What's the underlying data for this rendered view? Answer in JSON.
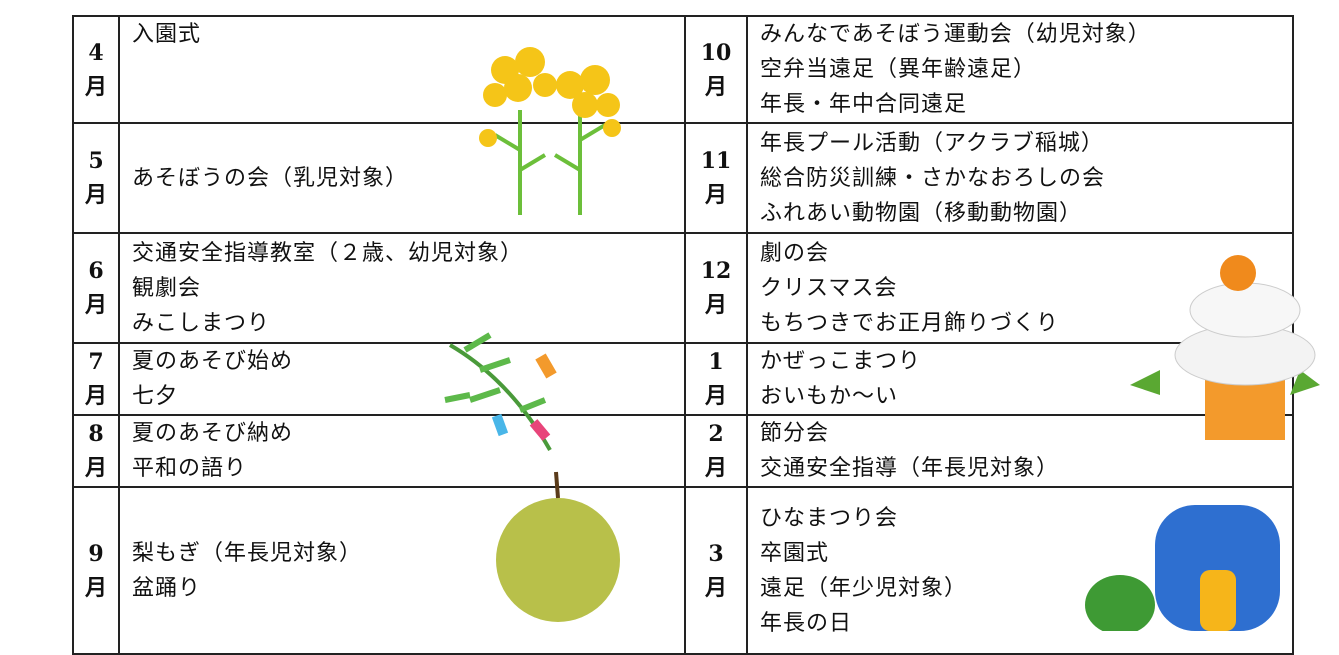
{
  "schedule": {
    "left": [
      {
        "month": [
          "4",
          "月"
        ],
        "events": [
          "入園式"
        ]
      },
      {
        "month": [
          "5",
          "月"
        ],
        "events": [
          "あそぼうの会（乳児対象）"
        ]
      },
      {
        "month": [
          "6",
          "月"
        ],
        "events": [
          "交通安全指導教室（２歳、幼児対象）",
          "観劇会",
          "みこしまつり"
        ]
      },
      {
        "month": [
          "7",
          "月"
        ],
        "events": [
          "夏のあそび始め",
          "七夕"
        ]
      },
      {
        "month": [
          "8",
          "月"
        ],
        "events": [
          "夏のあそび納め",
          "平和の語り"
        ]
      },
      {
        "month": [
          "9",
          "月"
        ],
        "events": [
          "梨もぎ（年長児対象）",
          "盆踊り"
        ]
      }
    ],
    "right": [
      {
        "month": [
          "10",
          "月"
        ],
        "events": [
          "みんなであそぼう運動会（幼児対象）",
          "空弁当遠足（異年齢遠足）",
          "年長・年中合同遠足"
        ]
      },
      {
        "month": [
          "11",
          "月"
        ],
        "events": [
          "年長プール活動（アクラブ稲城）",
          "総合防災訓練・さかなおろしの会",
          "ふれあい動物園（移動動物園）"
        ]
      },
      {
        "month": [
          "12",
          "月"
        ],
        "events": [
          "劇の会",
          "クリスマス会",
          "もちつきでお正月飾りづくり"
        ]
      },
      {
        "month": [
          "1",
          "月"
        ],
        "events": [
          "かぜっこまつり",
          "おいもか～い"
        ]
      },
      {
        "month": [
          "2",
          "月"
        ],
        "events": [
          "節分会",
          "交通安全指導（年長児対象）"
        ]
      },
      {
        "month": [
          "3",
          "月"
        ],
        "events": [
          "ひなまつり会",
          "卒園式",
          "遠足（年少児対象）",
          "年長の日"
        ]
      }
    ]
  }
}
